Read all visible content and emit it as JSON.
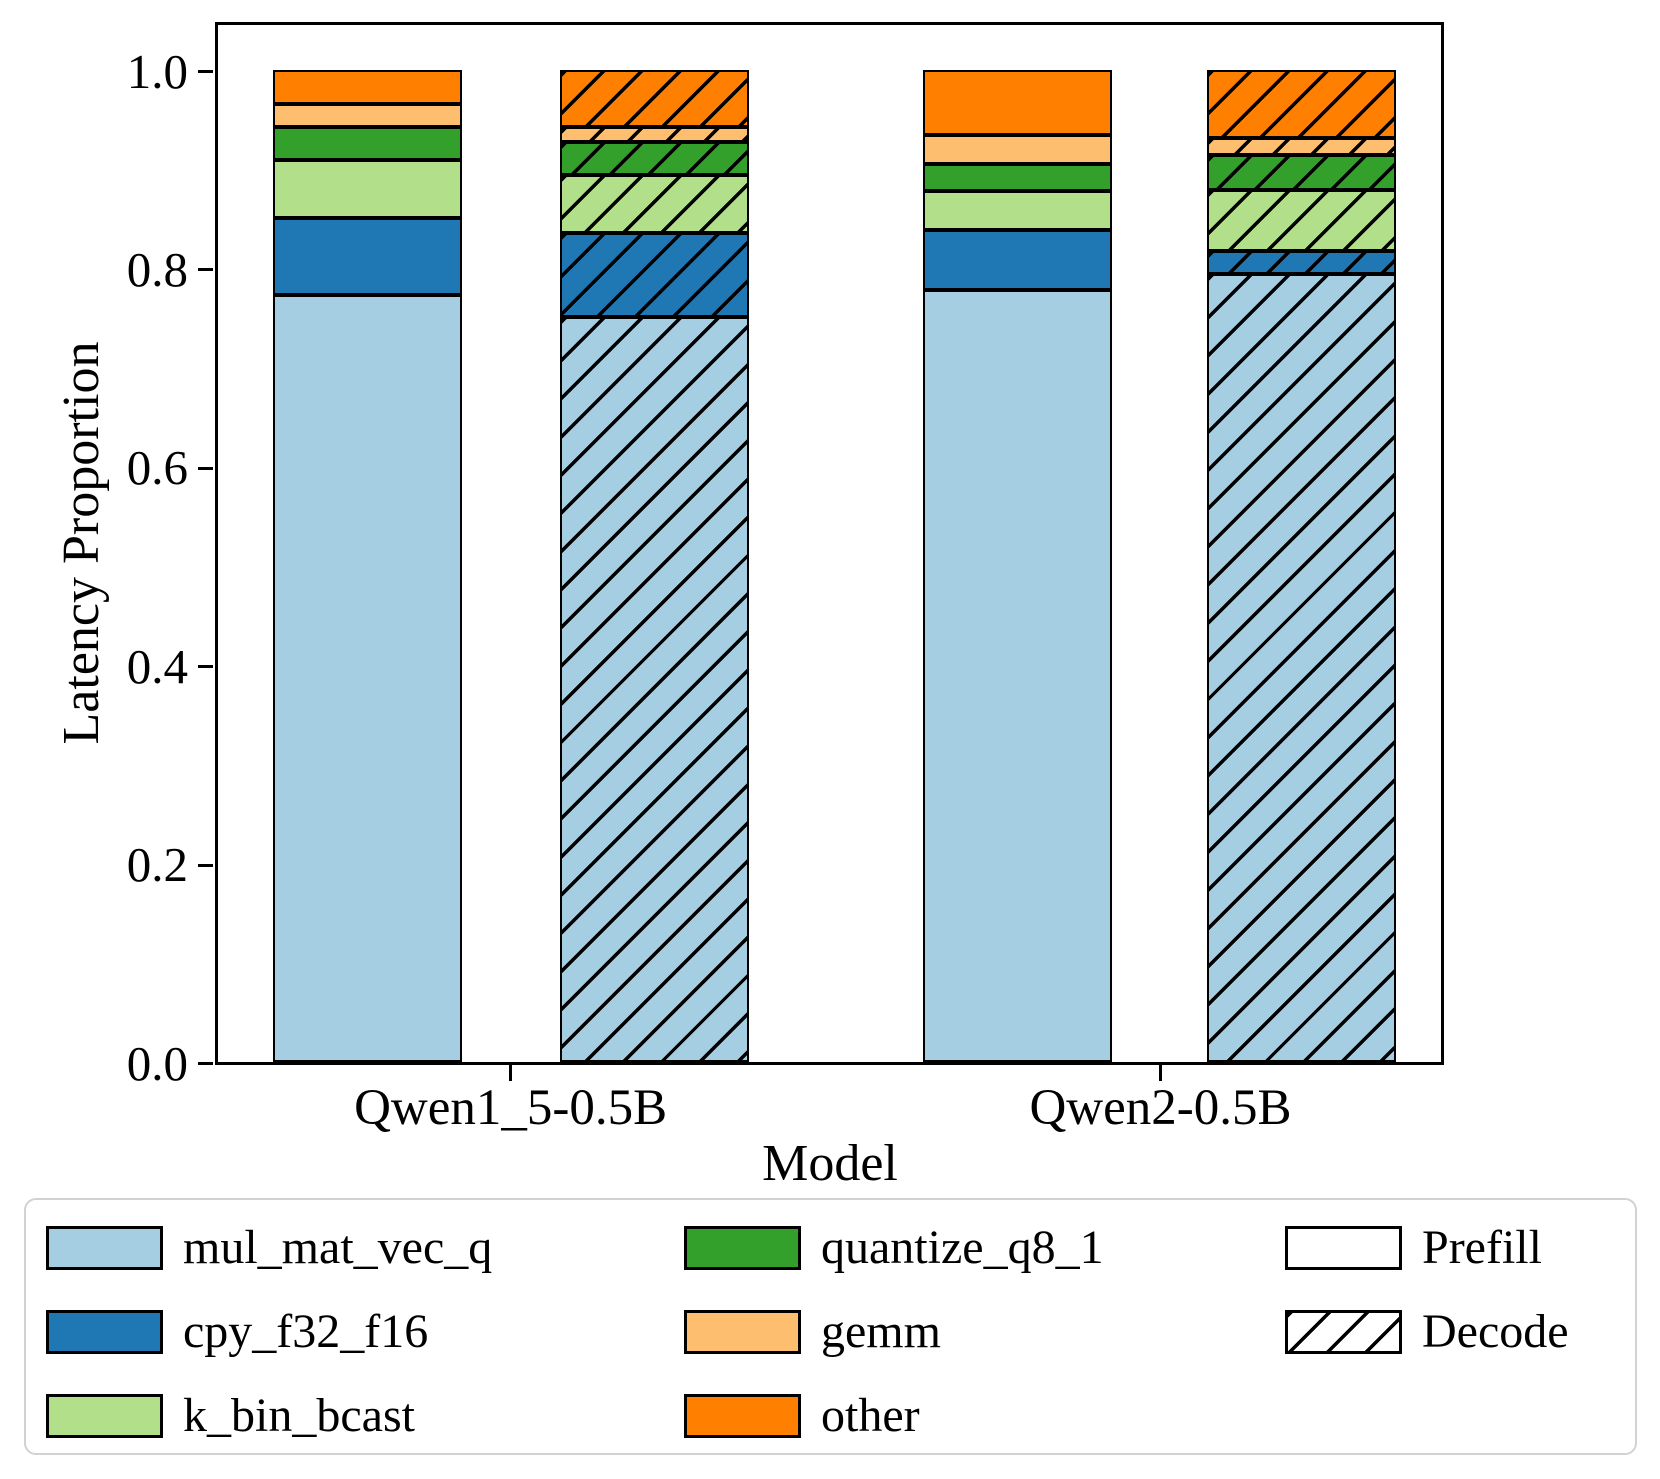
{
  "chart_data": {
    "type": "bar",
    "stacked": true,
    "title": "",
    "xlabel": "Model",
    "ylabel": "Latency Proportion",
    "ylim": [
      0,
      1.05
    ],
    "yticks": [
      0.0,
      0.2,
      0.4,
      0.6,
      0.8,
      1.0
    ],
    "ytick_labels": [
      "0.0",
      "0.2",
      "0.4",
      "0.6",
      "0.8",
      "1.0"
    ],
    "categories": [
      "Qwen1_5-0.5B",
      "Qwen2-0.5B"
    ],
    "phases": [
      "Prefill",
      "Decode"
    ],
    "grid": false,
    "bar_edge_color": "#000000",
    "operators": [
      {
        "name": "mul_mat_vec_q",
        "color": "#a6cee3"
      },
      {
        "name": "cpy_f32_f16",
        "color": "#1f78b4"
      },
      {
        "name": "k_bin_bcast",
        "color": "#b2df8a"
      },
      {
        "name": "quantize_q8_1",
        "color": "#33a02c"
      },
      {
        "name": "gemm",
        "color": "#fdbf6f"
      },
      {
        "name": "other",
        "color": "#ff7f00"
      }
    ],
    "bars": [
      {
        "model": "Qwen1_5-0.5B",
        "phase": "Prefill",
        "hatched": false,
        "values": {
          "mul_mat_vec_q": 0.773,
          "cpy_f32_f16": 0.078,
          "k_bin_bcast": 0.058,
          "quantize_q8_1": 0.034,
          "gemm": 0.023,
          "other": 0.034
        }
      },
      {
        "model": "Qwen1_5-0.5B",
        "phase": "Decode",
        "hatched": true,
        "values": {
          "mul_mat_vec_q": 0.751,
          "cpy_f32_f16": 0.085,
          "k_bin_bcast": 0.058,
          "quantize_q8_1": 0.033,
          "gemm": 0.016,
          "other": 0.057
        }
      },
      {
        "model": "Qwen2-0.5B",
        "phase": "Prefill",
        "hatched": false,
        "values": {
          "mul_mat_vec_q": 0.778,
          "cpy_f32_f16": 0.061,
          "k_bin_bcast": 0.039,
          "quantize_q8_1": 0.027,
          "gemm": 0.029,
          "other": 0.066
        }
      },
      {
        "model": "Qwen2-0.5B",
        "phase": "Decode",
        "hatched": true,
        "values": {
          "mul_mat_vec_q": 0.794,
          "cpy_f32_f16": 0.024,
          "k_bin_bcast": 0.061,
          "quantize_q8_1": 0.035,
          "gemm": 0.017,
          "other": 0.069
        }
      }
    ],
    "legend": {
      "position": "bottom",
      "columns": [
        [
          {
            "label": "mul_mat_vec_q",
            "color": "#a6cee3",
            "hatched": false
          },
          {
            "label": "cpy_f32_f16",
            "color": "#1f78b4",
            "hatched": false
          },
          {
            "label": "k_bin_bcast",
            "color": "#b2df8a",
            "hatched": false
          }
        ],
        [
          {
            "label": "quantize_q8_1",
            "color": "#33a02c",
            "hatched": false
          },
          {
            "label": "gemm",
            "color": "#fdbf6f",
            "hatched": false
          },
          {
            "label": "other",
            "color": "#ff7f00",
            "hatched": false
          }
        ],
        [
          {
            "label": "Prefill",
            "color": "#ffffff",
            "hatched": false
          },
          {
            "label": "Decode",
            "color": "#ffffff",
            "hatched": true
          }
        ]
      ]
    }
  }
}
